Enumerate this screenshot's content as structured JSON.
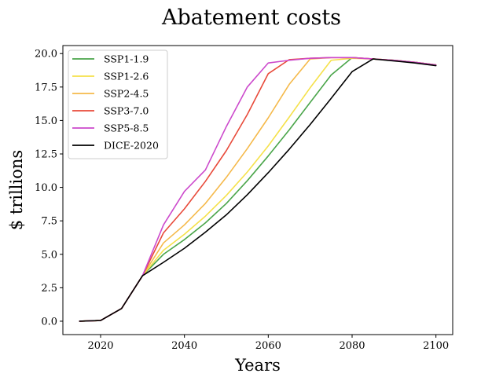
{
  "chart_data": {
    "type": "line",
    "title": "Abatement costs",
    "xlabel": "Years",
    "ylabel": "$ trillions",
    "xlim": [
      2011,
      2104
    ],
    "ylim": [
      -1,
      20.6
    ],
    "xticks": [
      2020,
      2040,
      2060,
      2080,
      2100
    ],
    "xtick_labels": [
      "2020",
      "2040",
      "2060",
      "2080",
      "2100"
    ],
    "yticks": [
      0.0,
      2.5,
      5.0,
      7.5,
      10.0,
      12.5,
      15.0,
      17.5,
      20.0
    ],
    "ytick_labels": [
      "0.0",
      "2.5",
      "5.0",
      "7.5",
      "10.0",
      "12.5",
      "15.0",
      "17.5",
      "20.0"
    ],
    "grid": false,
    "legend_position": "upper-left",
    "x": [
      2015,
      2020,
      2025,
      2030,
      2035,
      2040,
      2045,
      2050,
      2055,
      2060,
      2065,
      2070,
      2075,
      2080,
      2085,
      2090,
      2095,
      2100
    ],
    "series": [
      {
        "name": "SSP1-1.9",
        "color": "#4aa54a",
        "values": [
          0.0,
          0.05,
          0.95,
          3.4,
          5.0,
          6.1,
          7.35,
          8.8,
          10.5,
          12.35,
          14.3,
          16.35,
          18.4,
          19.7,
          19.6,
          19.5,
          19.35,
          19.15
        ]
      },
      {
        "name": "SSP1-2.6",
        "color": "#f5e14a",
        "values": [
          0.0,
          0.05,
          0.95,
          3.4,
          5.3,
          6.5,
          7.85,
          9.4,
          11.15,
          13.1,
          15.25,
          17.45,
          19.5,
          19.65,
          19.6,
          19.5,
          19.35,
          19.15
        ]
      },
      {
        "name": "SSP2-4.5",
        "color": "#f5b94a",
        "values": [
          0.0,
          0.05,
          0.95,
          3.4,
          5.85,
          7.2,
          8.8,
          10.75,
          12.9,
          15.2,
          17.7,
          19.6,
          19.7,
          19.7,
          19.6,
          19.5,
          19.35,
          19.15
        ]
      },
      {
        "name": "SSP3-7.0",
        "color": "#e84a3a",
        "values": [
          0.0,
          0.05,
          0.95,
          3.4,
          6.6,
          8.4,
          10.45,
          12.75,
          15.45,
          18.5,
          19.55,
          19.65,
          19.7,
          19.7,
          19.6,
          19.5,
          19.35,
          19.15
        ]
      },
      {
        "name": "SSP5-8.5",
        "color": "#cc4acc",
        "values": [
          0.0,
          0.05,
          0.95,
          3.4,
          7.2,
          9.7,
          11.3,
          14.55,
          17.5,
          19.3,
          19.5,
          19.65,
          19.7,
          19.7,
          19.6,
          19.5,
          19.35,
          19.15
        ]
      },
      {
        "name": "DICE-2020",
        "color": "#000000",
        "values": [
          0.0,
          0.05,
          0.95,
          3.4,
          4.4,
          5.45,
          6.65,
          7.95,
          9.45,
          11.1,
          12.85,
          14.7,
          16.65,
          18.65,
          19.6,
          19.45,
          19.3,
          19.1
        ]
      }
    ]
  }
}
